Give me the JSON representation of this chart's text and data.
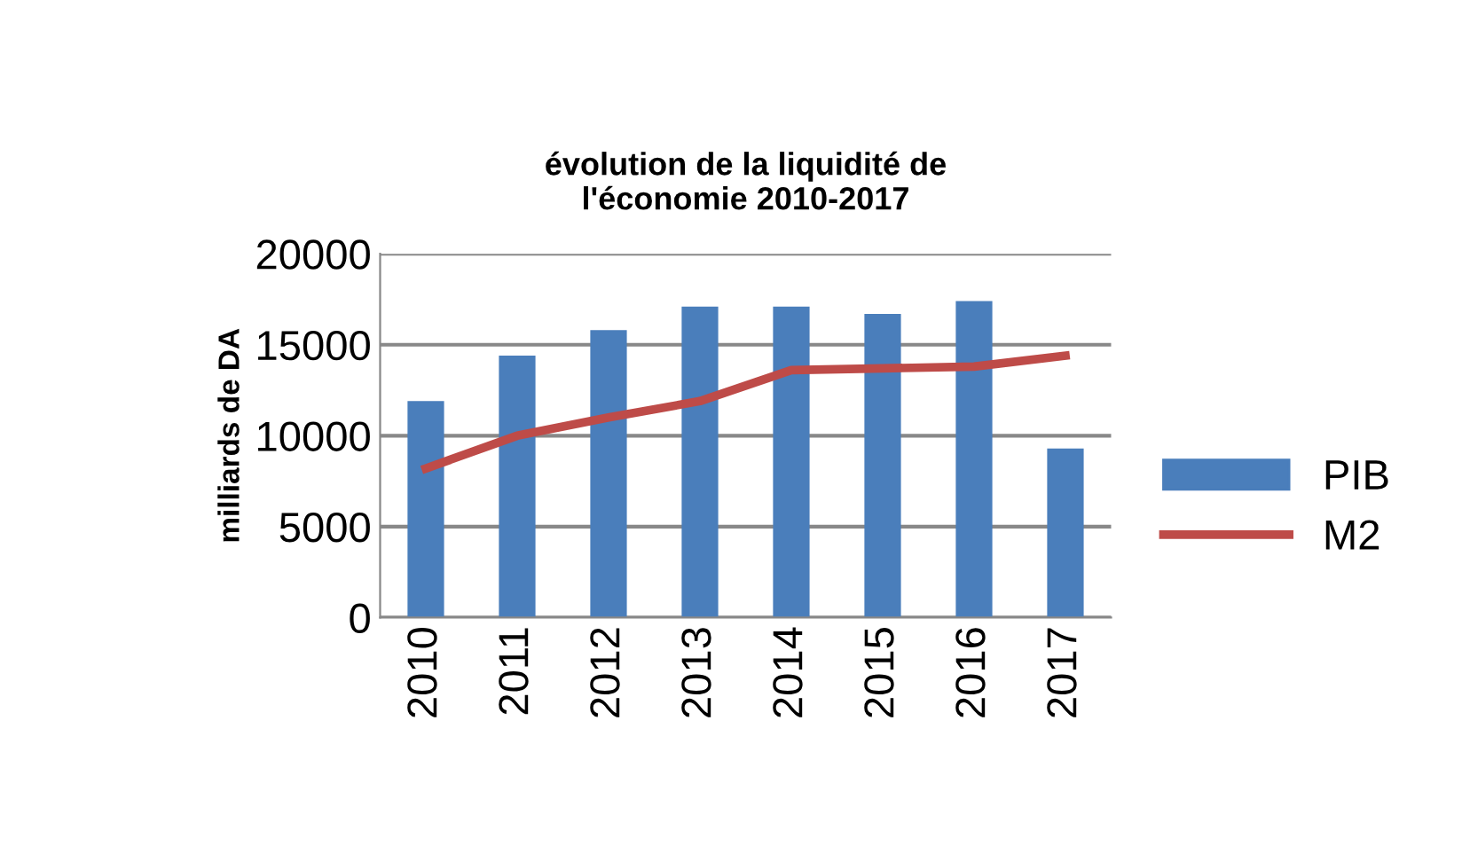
{
  "chart_data": {
    "type": "bar",
    "title": "évolution de la liquidité de\nl'économie 2010-2017",
    "ylabel": "milliards de DA",
    "categories": [
      "2010",
      "2011",
      "2012",
      "2013",
      "2014",
      "2015",
      "2016",
      "2017"
    ],
    "series": [
      {
        "name": "PIB",
        "color": "#4a7ebb",
        "values": [
          11900,
          14400,
          15800,
          17100,
          17100,
          16700,
          17400,
          9300
        ]
      },
      {
        "name": "M2",
        "type": "line",
        "color": "#be4b48",
        "values": [
          8200,
          10000,
          11000,
          11900,
          13600,
          13700,
          13800,
          14400
        ]
      }
    ],
    "ylim": [
      0,
      20000
    ],
    "yticks": [
      0,
      5000,
      10000,
      15000,
      20000
    ],
    "grid": "y",
    "legend": "right"
  }
}
